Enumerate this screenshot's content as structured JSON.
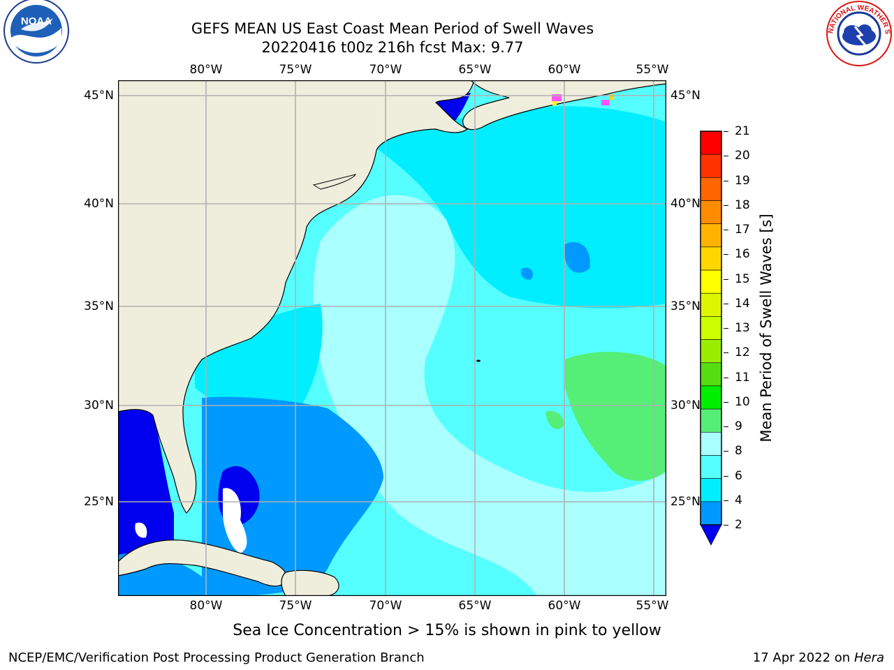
{
  "header": {
    "title_line1": "GEFS MEAN US East Coast Mean Period of Swell Waves",
    "title_line2": "20220416 t00z 216h fcst   Max: 9.77"
  },
  "logos": {
    "left_text": "NOAA",
    "right_text": "NATIONAL WEATHER SERVICE"
  },
  "map": {
    "lon_labels": [
      "80°W",
      "75°W",
      "70°W",
      "65°W",
      "60°W",
      "55°W"
    ],
    "lat_labels": [
      "45°N",
      "40°N",
      "35°N",
      "30°N",
      "25°N"
    ],
    "land_color": "#efeedd",
    "grid_color": "#b0b0b0"
  },
  "colorbar": {
    "label": "Mean Period of Swell Waves [s]",
    "ticks": [
      "21",
      "20",
      "19",
      "18",
      "17",
      "16",
      "15",
      "14",
      "13",
      "12",
      "11",
      "10",
      "9",
      "8",
      "6",
      "4",
      "2"
    ],
    "colors": [
      "#ff0000",
      "#ff3300",
      "#ff6600",
      "#ff8c00",
      "#ffb300",
      "#ffd700",
      "#ffff00",
      "#ddf500",
      "#ccff00",
      "#99ee00",
      "#55dd11",
      "#00ee00",
      "#55ee77",
      "#aaffff",
      "#55ffff",
      "#00eeff",
      "#0099ff",
      "#0000ee"
    ]
  },
  "note": "Sea Ice Concentration > 15% is shown in pink to yellow",
  "footer": {
    "left": "NCEP/EMC/Verification Post Processing Product Generation Branch",
    "date": "17 Apr 2022 on ",
    "machine": "Hera"
  }
}
